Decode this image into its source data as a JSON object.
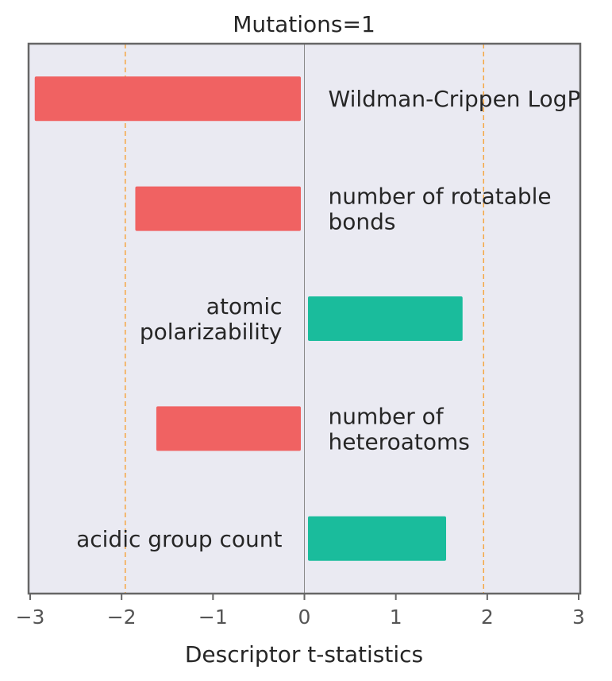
{
  "chart_data": {
    "type": "bar",
    "orientation": "horizontal",
    "title": "Mutations=1",
    "xlabel": "Descriptor t-statistics",
    "ylabel": "",
    "xlim": [
      -3,
      3
    ],
    "xticks": [
      -3,
      -2,
      -1,
      0,
      1,
      2,
      3
    ],
    "xtick_labels": [
      "−3",
      "−2",
      "−1",
      "0",
      "1",
      "2",
      "3"
    ],
    "grid": false,
    "threshold_lines": [
      -1.96,
      1.96
    ],
    "categories": [
      {
        "lines": [
          "Wildman-Crippen LogP"
        ]
      },
      {
        "lines": [
          "number of rotatable",
          "bonds"
        ]
      },
      {
        "lines": [
          "atomic",
          "polarizability"
        ]
      },
      {
        "lines": [
          "number of",
          "heteroatoms"
        ]
      },
      {
        "lines": [
          "acidic group count"
        ]
      }
    ],
    "values": [
      -2.95,
      -1.85,
      1.73,
      -1.62,
      1.55
    ],
    "colors": {
      "negative": "#f06262",
      "positive": "#1abc9c",
      "background": "#eaeaf2",
      "threshold": "#f5a742",
      "zero_line": "#8a8a8a",
      "frame": "#666666"
    }
  }
}
